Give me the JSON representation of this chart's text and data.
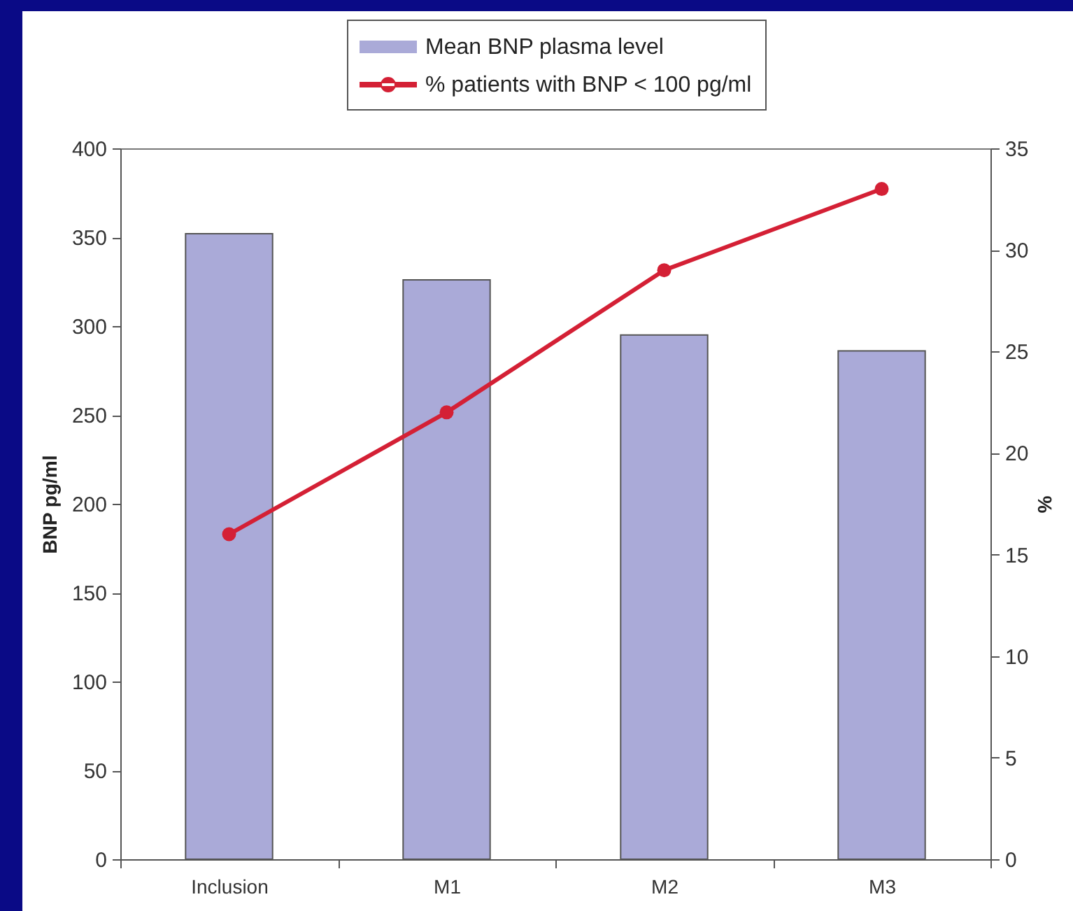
{
  "chart_data": {
    "type": "bar",
    "categories": [
      "Inclusion",
      "M1",
      "M2",
      "M3"
    ],
    "ylabel": "BNP pg/ml",
    "y2label": "%",
    "ylim": [
      0,
      400
    ],
    "yticks": [
      0,
      50,
      100,
      150,
      200,
      250,
      300,
      350,
      400
    ],
    "y2lim": [
      0,
      35
    ],
    "y2ticks": [
      0,
      5,
      10,
      15,
      20,
      25,
      30,
      35
    ],
    "series": [
      {
        "name": "Mean BNP plasma level",
        "color": "#aaaad8",
        "values": [
          352,
          326,
          295,
          286
        ]
      },
      {
        "name": "% patients with BNP < 100 pg/ml",
        "type": "line",
        "axis": "y2",
        "color": "#d42035",
        "values": [
          16,
          22,
          29,
          33
        ]
      }
    ],
    "legend": "top",
    "marker": "circle",
    "line_style": "solid",
    "grid": false
  }
}
